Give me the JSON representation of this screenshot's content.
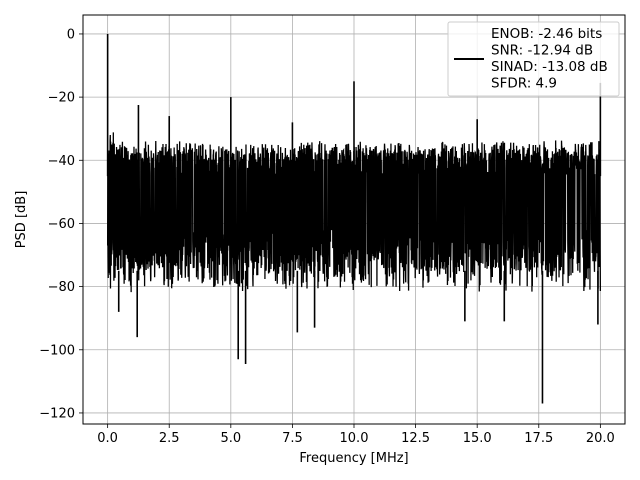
{
  "chart_data": {
    "type": "line",
    "title": "",
    "xlabel": "Frequency [MHz]",
    "ylabel": "PSD [dB]",
    "xlim": [
      -1.0,
      21.0
    ],
    "ylim": [
      -123.5,
      6.0
    ],
    "grid": true,
    "legend_placement": "top-right",
    "x_ticks": [
      0.0,
      2.5,
      5.0,
      7.5,
      10.0,
      12.5,
      15.0,
      17.5,
      20.0
    ],
    "x_tick_labels": [
      "0.0",
      "2.5",
      "5.0",
      "7.5",
      "10.0",
      "12.5",
      "15.0",
      "17.5",
      "20.0"
    ],
    "y_ticks": [
      0,
      -20,
      -40,
      -60,
      -80,
      -100,
      -120
    ],
    "y_tick_labels": [
      "0",
      "−20",
      "−40",
      "−60",
      "−80",
      "−100",
      "−120"
    ],
    "legend_entries": [
      "ENOB: -2.46 bits",
      "SNR: -12.94 dB",
      "SINAD: -13.08 dB",
      "SFDR: 4.9"
    ],
    "series": [
      {
        "color": "#000000",
        "noise_floor_top": -36,
        "noise_floor_bottom": -80,
        "spurs": [
          {
            "x": 0.0,
            "y": 0.0
          },
          {
            "x": 1.25,
            "y": -22.5
          },
          {
            "x": 2.5,
            "y": -26.0
          },
          {
            "x": 5.0,
            "y": -20.0
          },
          {
            "x": 7.5,
            "y": -28.0
          },
          {
            "x": 10.0,
            "y": -15.0
          },
          {
            "x": 15.0,
            "y": -27.0
          },
          {
            "x": 20.0,
            "y": -15.5
          }
        ],
        "dips": [
          {
            "x": 0.45,
            "y": -88.0
          },
          {
            "x": 1.2,
            "y": -96.0
          },
          {
            "x": 5.3,
            "y": -103.0
          },
          {
            "x": 5.6,
            "y": -104.5
          },
          {
            "x": 7.7,
            "y": -94.5
          },
          {
            "x": 8.4,
            "y": -93.0
          },
          {
            "x": 14.5,
            "y": -91.0
          },
          {
            "x": 16.1,
            "y": -91.0
          },
          {
            "x": 17.65,
            "y": -117.0
          },
          {
            "x": 19.9,
            "y": -92.0
          }
        ]
      }
    ]
  }
}
